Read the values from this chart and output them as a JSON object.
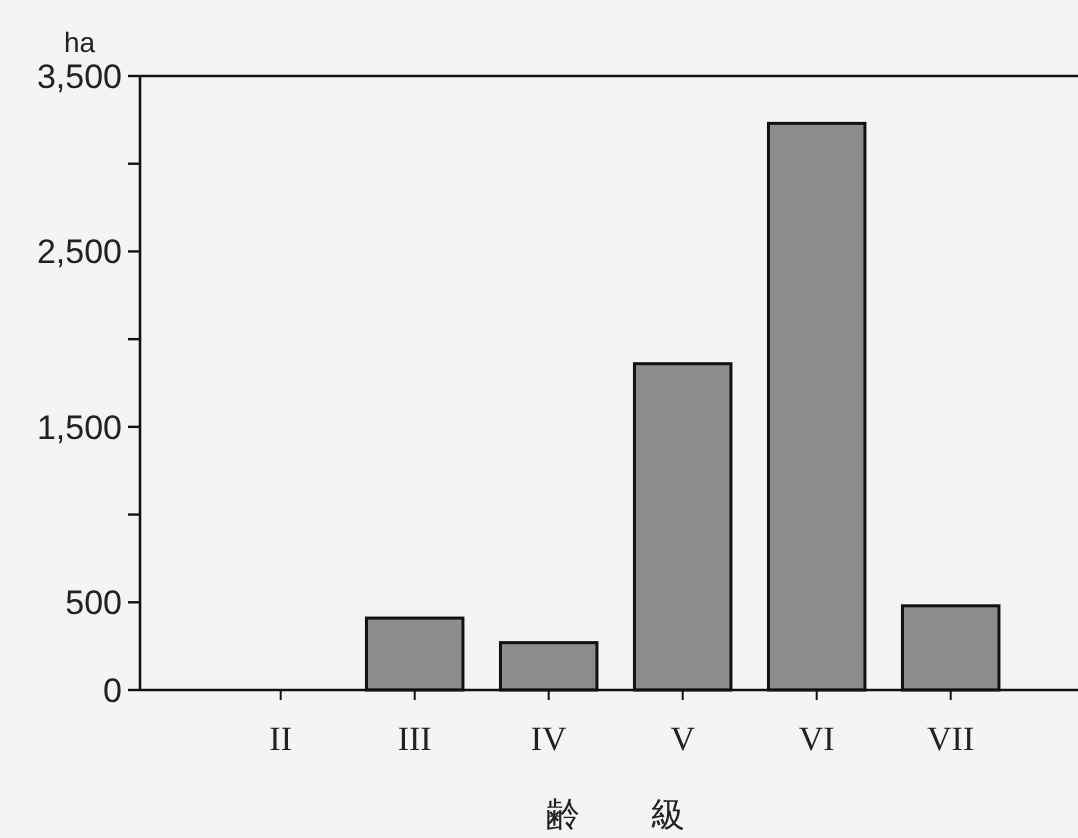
{
  "chart_data": {
    "type": "bar",
    "xlabel": "齢 級",
    "ylabel": "ha",
    "categories": [
      "II",
      "III",
      "IV",
      "V",
      "VI",
      "VII"
    ],
    "values": [
      0,
      410,
      270,
      1860,
      3230,
      480
    ],
    "color": "#8c8c8c",
    "ylim": [
      0,
      3500
    ],
    "yticks": [
      0,
      500,
      {
        "value": 1000,
        "label": null
      },
      {
        "value": 1500,
        "label": "1,500"
      },
      {
        "value": 2000,
        "label": null
      },
      {
        "value": 2500,
        "label": "2,500"
      },
      {
        "value": 3000,
        "label": null
      },
      {
        "value": 3500,
        "label": "3,500"
      }
    ],
    "grid": false
  }
}
